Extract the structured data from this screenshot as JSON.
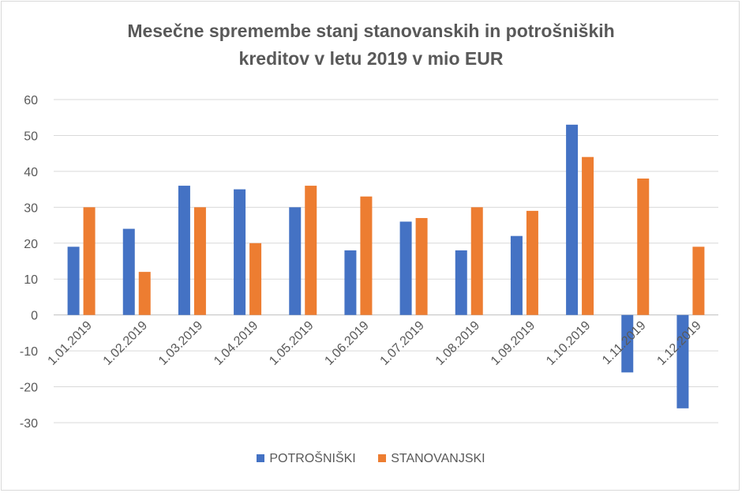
{
  "chart_data": {
    "type": "bar",
    "title_lines": [
      "Mesečne spremembe stanj stanovanskih in potrošniških",
      "kreditov v letu 2019 v mio EUR"
    ],
    "categories": [
      "1.01.2019",
      "1.02.2019",
      "1.03.2019",
      "1.04.2019",
      "1.05.2019",
      "1.06.2019",
      "1.07.2019",
      "1.08.2019",
      "1.09.2019",
      "1.10.2019",
      "1.11.2019",
      "1.12.2019"
    ],
    "series": [
      {
        "name": "POTROŠNIŠKI",
        "color": "#4472c4",
        "values": [
          19,
          24,
          36,
          35,
          30,
          18,
          26,
          18,
          22,
          53,
          -16,
          -26
        ]
      },
      {
        "name": "STANOVANJSKI",
        "color": "#ed7d31",
        "values": [
          30,
          12,
          30,
          20,
          36,
          33,
          27,
          30,
          29,
          44,
          38,
          19
        ]
      }
    ],
    "ylim": [
      -30,
      60
    ],
    "yticks": [
      -30,
      -20,
      -10,
      0,
      10,
      20,
      30,
      40,
      50,
      60
    ],
    "grid": true,
    "legend": "bottom",
    "xlabel": "",
    "ylabel": ""
  }
}
